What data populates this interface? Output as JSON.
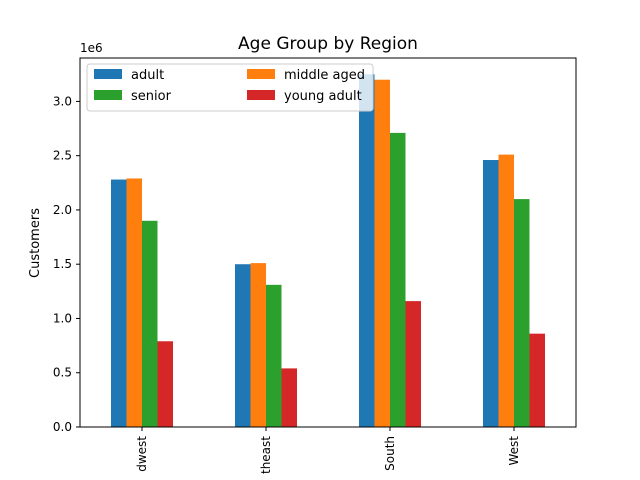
{
  "chart_data": {
    "type": "bar",
    "title": "Age Group by Region",
    "xlabel": "",
    "ylabel": "Customers",
    "offset_label": "1e6",
    "categories": [
      "Midwest",
      "Northeast",
      "South",
      "West"
    ],
    "category_tick_labels": [
      "dwest",
      "theast",
      "South",
      "West"
    ],
    "ylim": [
      0,
      3400000
    ],
    "yticks": [
      0,
      500000,
      1000000,
      1500000,
      2000000,
      2500000,
      3000000
    ],
    "ytick_labels": [
      "0.0",
      "0.5",
      "1.0",
      "1.5",
      "2.0",
      "2.5",
      "3.0"
    ],
    "legend_position": "top-left",
    "legend_columns": 2,
    "grid": false,
    "series": [
      {
        "name": "adult",
        "color": "#1f77b4",
        "values": [
          2280000,
          1500000,
          3250000,
          2460000
        ]
      },
      {
        "name": "middle aged",
        "color": "#ff7f0e",
        "values": [
          2290000,
          1510000,
          3200000,
          2510000
        ]
      },
      {
        "name": "senior",
        "color": "#2ca02c",
        "values": [
          1900000,
          1310000,
          2710000,
          2100000
        ]
      },
      {
        "name": "young adult",
        "color": "#d62728",
        "values": [
          790000,
          540000,
          1160000,
          860000
        ]
      }
    ]
  }
}
